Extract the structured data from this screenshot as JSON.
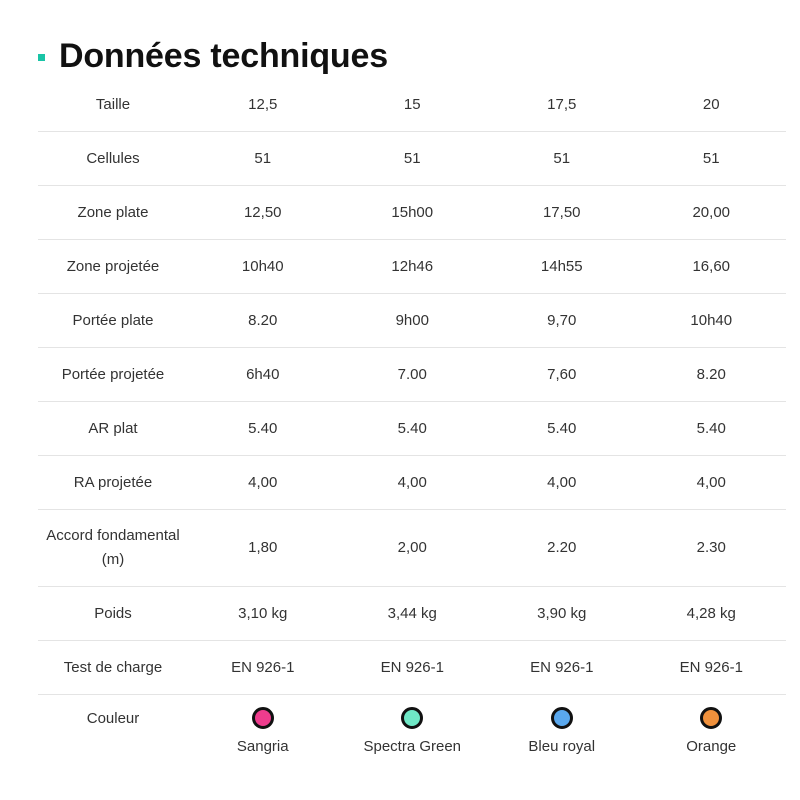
{
  "title": "Données techniques",
  "colors": {
    "accent": "#19c4a6",
    "divider": "#e4e4e4"
  },
  "rows": [
    {
      "label": "Taille",
      "values": [
        "12,5",
        "15",
        "17,5",
        "20"
      ]
    },
    {
      "label": "Cellules",
      "values": [
        "51",
        "51",
        "51",
        "51"
      ]
    },
    {
      "label": "Zone plate",
      "values": [
        "12,50",
        "15h00",
        "17,50",
        "20,00"
      ]
    },
    {
      "label": "Zone projetée",
      "values": [
        "10h40",
        "12h46",
        "14h55",
        "16,60"
      ]
    },
    {
      "label": "Portée plate",
      "values": [
        "8.20",
        "9h00",
        "9,70",
        "10h40"
      ]
    },
    {
      "label": "Portée projetée",
      "values": [
        "6h40",
        "7.00",
        "7,60",
        "8.20"
      ]
    },
    {
      "label": "AR plat",
      "values": [
        "5.40",
        "5.40",
        "5.40",
        "5.40"
      ]
    },
    {
      "label": "RA projetée",
      "values": [
        "4,00",
        "4,00",
        "4,00",
        "4,00"
      ]
    },
    {
      "label": "Accord fondamental (m)",
      "values": [
        "1,80",
        "2,00",
        "2.20",
        "2.30"
      ]
    },
    {
      "label": "Poids",
      "values": [
        "3,10 kg",
        "3,44 kg",
        "3,90 kg",
        "4,28 kg"
      ]
    },
    {
      "label": "Test de charge",
      "values": [
        "EN 926-1",
        "EN 926-1",
        "EN 926-1",
        "EN 926-1"
      ]
    }
  ],
  "color_row": {
    "label": "Couleur",
    "options": [
      {
        "name": "Sangria",
        "color": "#ee3c8d"
      },
      {
        "name": "Spectra Green",
        "color": "#6fe8c6"
      },
      {
        "name": "Bleu royal",
        "color": "#5aa8ee"
      },
      {
        "name": "Orange",
        "color": "#f0913c"
      }
    ]
  }
}
